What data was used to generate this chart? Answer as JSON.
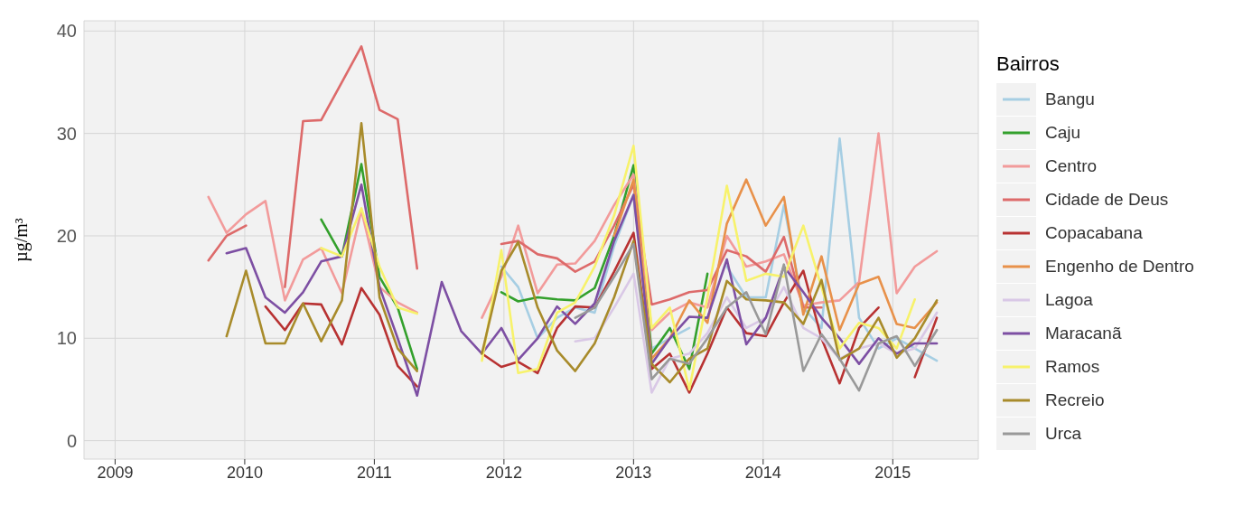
{
  "chart_data": {
    "type": "line",
    "ylabel": "µg/m³",
    "legend_title": "Bairros",
    "legend": "right",
    "grid": true,
    "marker": "none",
    "line_style": "solid",
    "xlim": [
      2008.76,
      2015.66
    ],
    "xticks": [
      2009,
      2010,
      2011,
      2012,
      2013,
      2014,
      2015
    ],
    "ylim": [
      -1.8,
      41
    ],
    "yticks": [
      0,
      10,
      20,
      30,
      40
    ],
    "x": [
      2009.72,
      2009.86,
      2010.01,
      2010.16,
      2010.31,
      2010.45,
      2010.59,
      2010.75,
      2010.9,
      2011.04,
      2011.18,
      2011.33,
      2011.52,
      2011.67,
      2011.83,
      2011.98,
      2012.11,
      2012.26,
      2012.41,
      2012.55,
      2012.7,
      2012.85,
      2013.0,
      2013.14,
      2013.28,
      2013.43,
      2013.57,
      2013.72,
      2013.87,
      2014.02,
      2014.16,
      2014.31,
      2014.45,
      2014.59,
      2014.74,
      2014.89,
      2015.03,
      2015.17,
      2015.34
    ],
    "series": [
      {
        "name": "Bangu",
        "color": "#a6cee3",
        "values": [
          null,
          null,
          null,
          null,
          null,
          null,
          null,
          null,
          null,
          null,
          null,
          null,
          null,
          null,
          null,
          17,
          15,
          10,
          12,
          13,
          12.5,
          19,
          24,
          9,
          10,
          11,
          null,
          17,
          14,
          14,
          23,
          13,
          11,
          29.5,
          12,
          9,
          10,
          9,
          7.8
        ]
      },
      {
        "name": "Caju",
        "color": "#33a02c",
        "values": [
          null,
          null,
          null,
          null,
          null,
          null,
          21.6,
          18,
          27,
          16,
          13,
          7,
          null,
          null,
          null,
          14.5,
          13.6,
          14,
          13.8,
          13.7,
          14.9,
          20,
          26.9,
          8.5,
          11,
          7,
          16.3,
          null,
          null,
          null,
          null,
          null,
          null,
          null,
          null,
          null,
          null,
          null,
          null
        ]
      },
      {
        "name": "Centro",
        "color": "#f29b9b",
        "values": [
          23.8,
          20.3,
          22.1,
          23.4,
          13.7,
          17.7,
          18.8,
          14.4,
          22.5,
          15,
          13.5,
          12.5,
          null,
          null,
          12,
          16,
          21,
          14.4,
          17.2,
          17.3,
          19.5,
          23,
          26,
          10.8,
          12.5,
          13.5,
          13,
          20,
          17,
          17.5,
          18.2,
          13.2,
          13.5,
          13.7,
          15.5,
          30,
          14.4,
          17,
          18.5
        ]
      },
      {
        "name": "Cidade de Deus",
        "color": "#dd6a6a",
        "values": [
          17.6,
          20,
          21,
          null,
          15,
          31.2,
          31.3,
          35,
          38.5,
          32.3,
          31.4,
          16.8,
          null,
          null,
          null,
          19.2,
          19.5,
          18.2,
          17.8,
          16.5,
          17.5,
          21,
          25,
          13.3,
          13.8,
          14.5,
          14.7,
          18.6,
          18,
          16.5,
          19.9,
          13,
          13,
          null,
          null,
          null,
          null,
          null,
          null
        ]
      },
      {
        "name": "Copacabana",
        "color": "#b83232",
        "values": [
          null,
          null,
          null,
          13.1,
          10.8,
          13.4,
          13.3,
          9.4,
          14.9,
          12.3,
          7.3,
          5.3,
          null,
          null,
          8.5,
          7.2,
          7.7,
          6.6,
          11,
          13.1,
          13,
          16.5,
          20.3,
          7,
          8.5,
          4.7,
          8.5,
          13,
          10.5,
          10.2,
          13.5,
          16.6,
          10,
          5.6,
          11,
          13,
          null,
          6.2,
          12
        ]
      },
      {
        "name": "Engenho de Dentro",
        "color": "#e8914a",
        "values": [
          null,
          null,
          null,
          null,
          null,
          null,
          null,
          null,
          null,
          null,
          null,
          null,
          null,
          null,
          null,
          null,
          null,
          null,
          null,
          null,
          null,
          20,
          25.5,
          8,
          10,
          13.7,
          11.5,
          21.2,
          25.5,
          21,
          23.8,
          12.3,
          18,
          10.8,
          15.3,
          16,
          11.4,
          11,
          13.5
        ]
      },
      {
        "name": "Lagoa",
        "color": "#d9c8e6",
        "values": [
          null,
          null,
          null,
          null,
          null,
          null,
          null,
          null,
          null,
          null,
          null,
          null,
          null,
          null,
          null,
          null,
          null,
          null,
          null,
          9.7,
          10,
          13,
          16.3,
          4.7,
          8,
          8.5,
          10.5,
          14,
          11,
          12,
          15,
          11,
          10,
          8,
          9,
          9.5,
          8.5,
          9,
          12.5
        ]
      },
      {
        "name": "Maracanã",
        "color": "#7d4fa3",
        "values": [
          null,
          18.3,
          18.8,
          14,
          12.5,
          14.5,
          17.5,
          18,
          25,
          15,
          10,
          4.4,
          15.5,
          10.7,
          8.5,
          11,
          7.9,
          10,
          13.1,
          11.4,
          13.4,
          19.5,
          24,
          7.5,
          10,
          12.1,
          12,
          17.7,
          9.4,
          12,
          17,
          14.5,
          12,
          10,
          7.5,
          10,
          8.5,
          9.5,
          9.5
        ]
      },
      {
        "name": "Ramos",
        "color": "#f7f26b",
        "values": [
          null,
          null,
          null,
          null,
          null,
          null,
          18.8,
          18,
          22.7,
          17,
          13,
          12.4,
          null,
          null,
          7.8,
          18.6,
          6.6,
          7,
          12.5,
          13.5,
          17,
          22,
          28.8,
          11,
          13,
          5,
          14,
          24.9,
          15.6,
          16.3,
          16,
          21,
          15,
          9,
          11.5,
          11,
          9,
          13.8,
          null
        ]
      },
      {
        "name": "Recreio",
        "color": "#a88b2b",
        "values": [
          null,
          10.2,
          16.6,
          9.5,
          9.5,
          13.4,
          9.7,
          13.7,
          31,
          14,
          9,
          6.8,
          null,
          null,
          8.5,
          16.6,
          19.4,
          13,
          8.8,
          6.8,
          9.5,
          14,
          19.5,
          7.5,
          5.7,
          8,
          9,
          15.6,
          13.8,
          13.7,
          13.5,
          11.4,
          15.7,
          7.9,
          9,
          12,
          8.1,
          10,
          13.7
        ]
      },
      {
        "name": "Urca",
        "color": "#999999",
        "values": [
          null,
          null,
          null,
          null,
          null,
          null,
          null,
          null,
          null,
          null,
          null,
          null,
          null,
          null,
          null,
          null,
          null,
          null,
          null,
          12,
          13,
          16,
          19.2,
          6,
          8,
          7.5,
          10,
          13,
          14.5,
          10.4,
          17.2,
          6.8,
          10.4,
          8,
          4.9,
          9.5,
          10.2,
          7.3,
          10.8
        ]
      }
    ]
  }
}
